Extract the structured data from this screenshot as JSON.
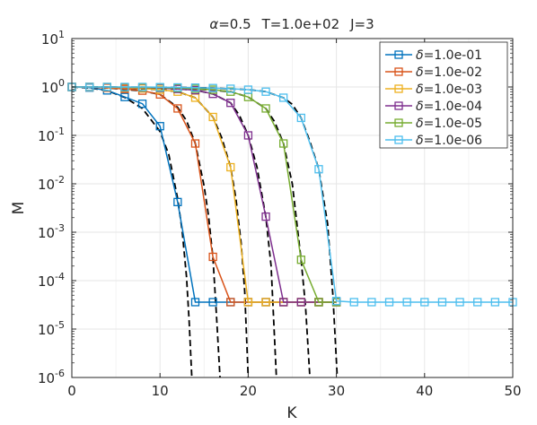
{
  "chart_data": {
    "type": "line",
    "title_parts": {
      "alpha_symbol": "α",
      "alpha": "=0.5",
      "T": "T=1.0e+02",
      "J": "J=3"
    },
    "xlabel": "K",
    "ylabel": "M",
    "xlim": [
      0,
      50
    ],
    "ylim": [
      1e-06,
      10
    ],
    "yscale": "log",
    "grid": true,
    "legend_position": "top-right",
    "x_ticks": [
      0,
      10,
      20,
      30,
      40,
      50
    ],
    "x_tick_labels": [
      "0",
      "10",
      "20",
      "30",
      "40",
      "50"
    ],
    "y_tick_exponents": [
      1,
      0,
      -1,
      -2,
      -3,
      -4,
      -5,
      -6
    ],
    "y_tick_labels": [
      "1",
      "0",
      "-1",
      "-2",
      "-3",
      "-4",
      "-5",
      "-6"
    ],
    "y_tick_base": "10",
    "legend_symbol": "δ",
    "series": [
      {
        "name": "=1.0e-01",
        "color": "#0072bd",
        "x": [
          0,
          2,
          4,
          6,
          8,
          10,
          12,
          14,
          16,
          18,
          20,
          22,
          24,
          26,
          28,
          30
        ],
        "y": [
          1,
          0.97,
          0.85,
          0.62,
          0.45,
          0.155,
          0.0042,
          3.6e-05,
          3.6e-05,
          3.6e-05,
          3.6e-05,
          3.6e-05,
          3.6e-05,
          3.6e-05,
          3.6e-05,
          3.6e-05
        ]
      },
      {
        "name": "=1.0e-02",
        "color": "#d95319",
        "x": [
          0,
          2,
          4,
          6,
          8,
          10,
          12,
          14,
          16,
          18,
          20,
          22,
          24,
          26,
          28,
          30
        ],
        "y": [
          1,
          0.99,
          0.96,
          0.91,
          0.84,
          0.7,
          0.36,
          0.068,
          0.00031,
          3.6e-05,
          3.6e-05,
          3.6e-05,
          3.6e-05,
          3.6e-05,
          3.6e-05,
          3.6e-05
        ]
      },
      {
        "name": "=1.0e-03",
        "color": "#edb120",
        "x": [
          0,
          2,
          4,
          6,
          8,
          10,
          12,
          14,
          16,
          18,
          20,
          22,
          24,
          26,
          28,
          30
        ],
        "y": [
          1,
          1,
          0.98,
          0.96,
          0.93,
          0.88,
          0.8,
          0.6,
          0.24,
          0.022,
          3.6e-05,
          3.6e-05,
          3.6e-05,
          3.6e-05,
          3.6e-05,
          3.6e-05
        ]
      },
      {
        "name": "=1.0e-04",
        "color": "#7e2f8e",
        "x": [
          0,
          2,
          4,
          6,
          8,
          10,
          12,
          14,
          16,
          18,
          20,
          22,
          24,
          26,
          28,
          30
        ],
        "y": [
          1,
          1,
          0.99,
          0.98,
          0.97,
          0.95,
          0.91,
          0.86,
          0.72,
          0.47,
          0.1,
          0.0021,
          3.6e-05,
          3.6e-05,
          3.6e-05,
          3.6e-05
        ]
      },
      {
        "name": "=1.0e-05",
        "color": "#77ac30",
        "x": [
          0,
          2,
          4,
          6,
          8,
          10,
          12,
          14,
          16,
          18,
          20,
          22,
          24,
          26,
          28,
          30
        ],
        "y": [
          1,
          1,
          1,
          0.99,
          0.98,
          0.97,
          0.95,
          0.92,
          0.88,
          0.8,
          0.62,
          0.36,
          0.068,
          0.00027,
          3.6e-05,
          3.6e-05
        ]
      },
      {
        "name": "=1.0e-06",
        "color": "#4dbeee",
        "x": [
          0,
          2,
          4,
          6,
          8,
          10,
          12,
          14,
          16,
          18,
          20,
          22,
          24,
          26,
          28,
          30,
          32,
          34,
          36,
          38,
          40,
          42,
          44,
          46,
          48,
          50
        ],
        "y": [
          1,
          1,
          1,
          1,
          1,
          0.99,
          0.98,
          0.97,
          0.95,
          0.92,
          0.88,
          0.8,
          0.6,
          0.23,
          0.02,
          3.8e-05,
          3.6e-05,
          3.6e-05,
          3.6e-05,
          3.6e-05,
          3.6e-05,
          3.6e-05,
          3.6e-05,
          3.6e-05,
          3.6e-05,
          3.6e-05
        ]
      }
    ],
    "reference_curves": [
      {
        "style": "dashed",
        "color": "#000000",
        "x": [
          0,
          2,
          4,
          6,
          8,
          10,
          11,
          12,
          12.5,
          13,
          13.3,
          13.6
        ],
        "y": [
          1,
          0.96,
          0.84,
          0.61,
          0.36,
          0.12,
          0.04,
          0.005,
          0.0011,
          0.00012,
          1.5e-05,
          1e-06
        ]
      },
      {
        "style": "dashed",
        "color": "#000000",
        "x": [
          0,
          4,
          8,
          10,
          12,
          13,
          14,
          15,
          15.5,
          16,
          16.4,
          16.8
        ],
        "y": [
          1,
          0.96,
          0.83,
          0.7,
          0.38,
          0.2,
          0.068,
          0.009,
          0.0022,
          0.0003,
          2e-05,
          1e-06
        ]
      },
      {
        "style": "dashed",
        "color": "#000000",
        "x": [
          0,
          6,
          10,
          12,
          14,
          16,
          17,
          18,
          18.6,
          19.2,
          19.6,
          20
        ],
        "y": [
          1,
          0.96,
          0.88,
          0.8,
          0.6,
          0.24,
          0.09,
          0.022,
          0.005,
          0.0006,
          6e-05,
          1e-06
        ]
      },
      {
        "style": "dashed",
        "color": "#000000",
        "x": [
          0,
          8,
          12,
          14,
          16,
          18,
          19,
          20,
          21,
          22,
          22.6,
          23.2
        ],
        "y": [
          1,
          0.97,
          0.91,
          0.86,
          0.72,
          0.47,
          0.26,
          0.1,
          0.022,
          0.0021,
          0.0002,
          1e-06
        ]
      },
      {
        "style": "dashed",
        "color": "#000000",
        "x": [
          0,
          10,
          14,
          18,
          20,
          22,
          23,
          24,
          25,
          26,
          26.5,
          27
        ],
        "y": [
          1,
          0.97,
          0.92,
          0.8,
          0.62,
          0.36,
          0.19,
          0.068,
          0.01,
          0.00027,
          3e-05,
          1e-06
        ]
      },
      {
        "style": "dashed",
        "color": "#000000",
        "x": [
          0,
          12,
          16,
          20,
          22,
          24,
          25,
          26,
          27,
          28,
          29,
          29.6,
          30.1
        ],
        "y": [
          1,
          0.98,
          0.95,
          0.88,
          0.8,
          0.6,
          0.44,
          0.23,
          0.075,
          0.02,
          0.0015,
          5e-05,
          1e-06
        ]
      }
    ]
  }
}
